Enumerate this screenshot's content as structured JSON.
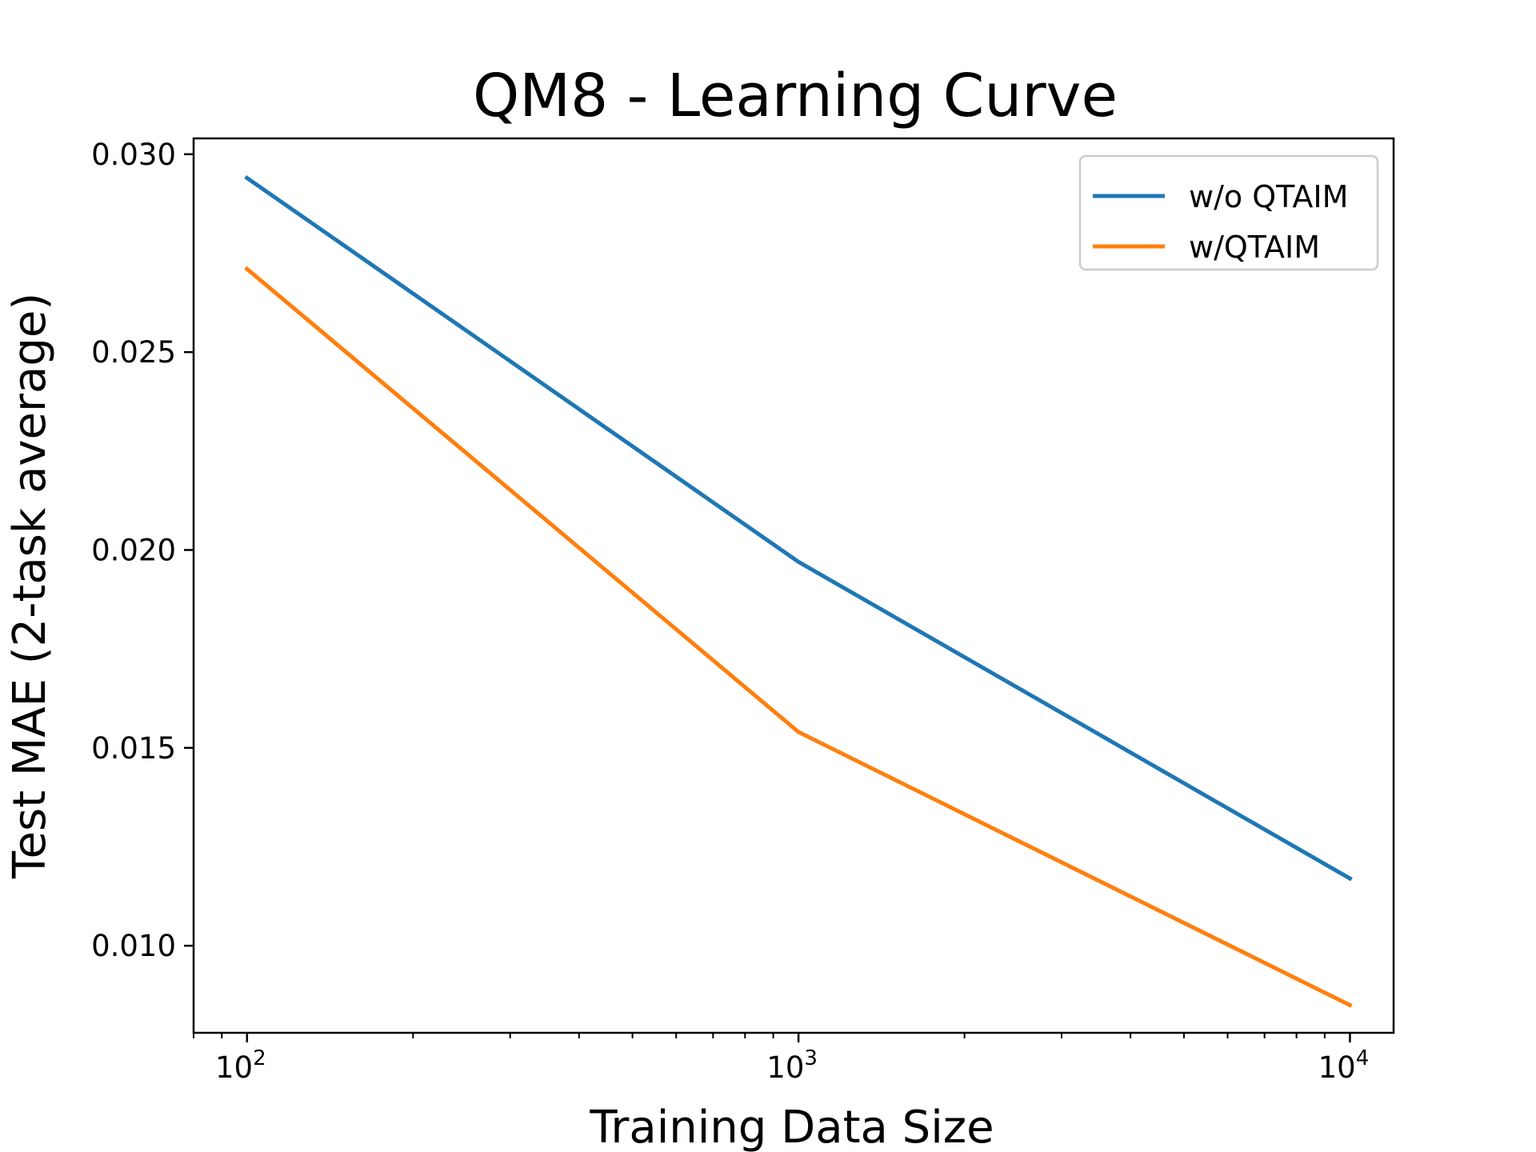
{
  "chart_data": {
    "type": "line",
    "title": "QM8 - Learning Curve",
    "xlabel": "Training Data Size",
    "ylabel": "Test MAE (2-task average)",
    "x_scale": "log",
    "x": [
      100,
      1000,
      10000
    ],
    "x_ticks": [
      {
        "value": 100,
        "base": "10",
        "exp": "2"
      },
      {
        "value": 1000,
        "base": "10",
        "exp": "3"
      },
      {
        "value": 10000,
        "base": "10",
        "exp": "4"
      }
    ],
    "y_ticks": [
      {
        "value": 0.01,
        "label": "0.010"
      },
      {
        "value": 0.015,
        "label": "0.015"
      },
      {
        "value": 0.02,
        "label": "0.020"
      },
      {
        "value": 0.025,
        "label": "0.025"
      },
      {
        "value": 0.03,
        "label": "0.030"
      }
    ],
    "xlim": [
      80,
      12000
    ],
    "ylim": [
      0.0078,
      0.0304
    ],
    "grid": false,
    "legend_position": "top-right",
    "series": [
      {
        "name": "w/o QTAIM",
        "color": "#1f77b4",
        "values": [
          0.0294,
          0.0197,
          0.0117
        ]
      },
      {
        "name": "w/QTAIM",
        "color": "#ff7f0e",
        "values": [
          0.0271,
          0.0154,
          0.0085
        ]
      }
    ]
  }
}
